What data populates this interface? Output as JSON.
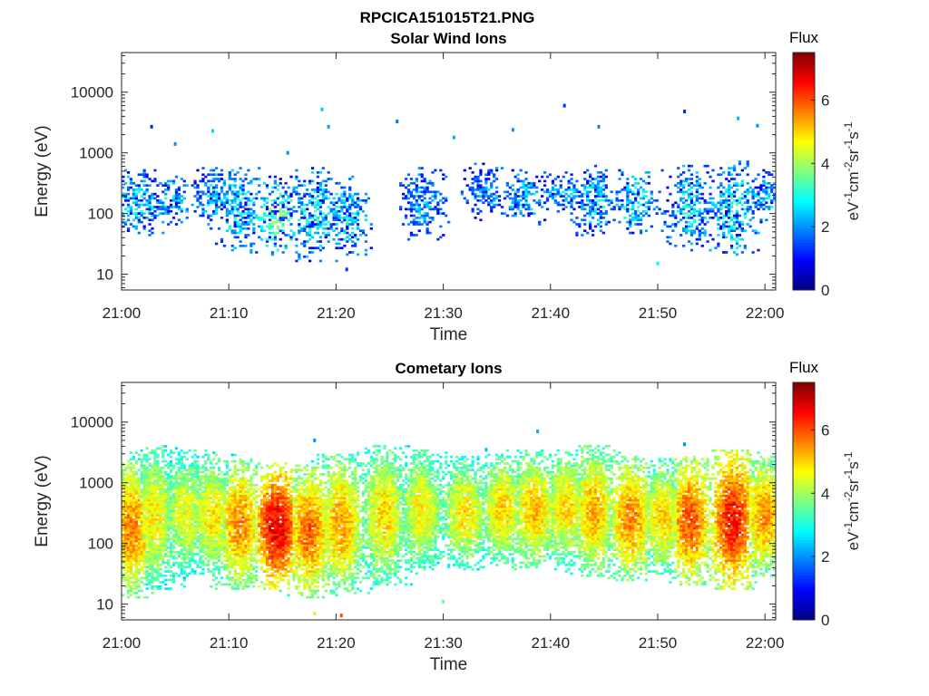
{
  "figure": {
    "title": "RPCICA151015T21.PNG"
  },
  "chart_data": [
    {
      "type": "heatmap",
      "title": "Solar Wind Ions",
      "xlabel": "Time",
      "ylabel": "Energy (eV)",
      "x_range": [
        "21:00",
        "22:01"
      ],
      "y_scale": "log",
      "y_range": [
        5.5,
        45000
      ],
      "x_ticks": [
        "21:00",
        "21:10",
        "21:20",
        "21:30",
        "21:40",
        "21:50",
        "22:00"
      ],
      "y_ticks": [
        "10",
        "100",
        "1000",
        "10000"
      ],
      "colorbar": {
        "label": "Flux",
        "unit": "eV-1cm-2sr-1s-1",
        "unit_display": [
          "eV",
          "-1",
          "cm",
          "-2",
          "sr",
          "-1",
          "s",
          "-1"
        ],
        "range": [
          0,
          7.5
        ],
        "ticks": [
          "0",
          "2",
          "4",
          "6"
        ],
        "colormap": "jet"
      },
      "bands": [
        {
          "t": 1.5,
          "lo": 60,
          "hi": 380,
          "peak": 2.8
        },
        {
          "t": 4.5,
          "lo": 90,
          "hi": 330,
          "peak": 2.6
        },
        {
          "t": 8.5,
          "lo": 80,
          "hi": 480,
          "peak": 2.5
        },
        {
          "t": 11.0,
          "lo": 35,
          "hi": 420,
          "peak": 2.9
        },
        {
          "t": 14.5,
          "lo": 28,
          "hi": 300,
          "peak": 3.6
        },
        {
          "t": 18.0,
          "lo": 22,
          "hi": 420,
          "peak": 3.0
        },
        {
          "t": 21.0,
          "lo": 30,
          "hi": 300,
          "peak": 2.8
        },
        {
          "t": 28.0,
          "lo": 50,
          "hi": 400,
          "peak": 2.5
        },
        {
          "t": 34.0,
          "lo": 110,
          "hi": 480,
          "peak": 2.3
        },
        {
          "t": 37.5,
          "lo": 90,
          "hi": 420,
          "peak": 2.6
        },
        {
          "t": 41.0,
          "lo": 120,
          "hi": 360,
          "peak": 2.5
        },
        {
          "t": 44.0,
          "lo": 60,
          "hi": 450,
          "peak": 2.7
        },
        {
          "t": 48.0,
          "lo": 60,
          "hi": 380,
          "peak": 2.9
        },
        {
          "t": 53.0,
          "lo": 35,
          "hi": 460,
          "peak": 2.8
        },
        {
          "t": 57.0,
          "lo": 30,
          "hi": 520,
          "peak": 3.2
        },
        {
          "t": 60.0,
          "lo": 90,
          "hi": 400,
          "peak": 2.6
        }
      ],
      "outliers": [
        [
          2.8,
          2700,
          1.2
        ],
        [
          5.0,
          1400,
          2.0
        ],
        [
          8.5,
          2300,
          2.5
        ],
        [
          15.5,
          1000,
          2.0
        ],
        [
          18.7,
          5200,
          2.4
        ],
        [
          19.3,
          2700,
          2.1
        ],
        [
          25.7,
          3300,
          1.8
        ],
        [
          31.0,
          1800,
          2.2
        ],
        [
          36.5,
          2400,
          2.0
        ],
        [
          41.3,
          6000,
          1.3
        ],
        [
          44.5,
          2700,
          1.9
        ],
        [
          52.5,
          4800,
          1.2
        ],
        [
          57.5,
          3700,
          2.3
        ],
        [
          59.3,
          2800,
          2.0
        ],
        [
          50.0,
          15,
          2.8
        ],
        [
          21.0,
          12,
          1.3
        ]
      ]
    },
    {
      "type": "heatmap",
      "title": "Cometary Ions",
      "xlabel": "Time",
      "ylabel": "Energy (eV)",
      "x_range": [
        "21:00",
        "22:01"
      ],
      "y_scale": "log",
      "y_range": [
        5.5,
        45000
      ],
      "x_ticks": [
        "21:00",
        "21:10",
        "21:20",
        "21:30",
        "21:40",
        "21:50",
        "22:00"
      ],
      "y_ticks": [
        "10",
        "100",
        "1000",
        "10000"
      ],
      "colorbar": {
        "label": "Flux",
        "unit": "eV-1cm-2sr-1s-1",
        "unit_display": [
          "eV",
          "-1",
          "cm",
          "-2",
          "sr",
          "-1",
          "s",
          "-1"
        ],
        "range": [
          0,
          7.5
        ],
        "ticks": [
          "0",
          "2",
          "4",
          "6"
        ],
        "colormap": "jet"
      },
      "bands": [
        {
          "t": 1.0,
          "lo": 18,
          "hi": 1800,
          "peak": 5.6
        },
        {
          "t": 3.0,
          "lo": 25,
          "hi": 3000,
          "peak": 4.8
        },
        {
          "t": 6.0,
          "lo": 40,
          "hi": 2500,
          "peak": 4.6
        },
        {
          "t": 8.5,
          "lo": 35,
          "hi": 2200,
          "peak": 4.9
        },
        {
          "t": 11.0,
          "lo": 25,
          "hi": 1800,
          "peak": 5.6
        },
        {
          "t": 14.5,
          "lo": 25,
          "hi": 1500,
          "peak": 6.8
        },
        {
          "t": 17.5,
          "lo": 18,
          "hi": 1400,
          "peak": 5.8
        },
        {
          "t": 20.5,
          "lo": 20,
          "hi": 2200,
          "peak": 5.4
        },
        {
          "t": 24.5,
          "lo": 30,
          "hi": 3000,
          "peak": 5.0
        },
        {
          "t": 28.0,
          "lo": 50,
          "hi": 2500,
          "peak": 4.8
        },
        {
          "t": 32.0,
          "lo": 50,
          "hi": 2000,
          "peak": 4.9
        },
        {
          "t": 35.5,
          "lo": 60,
          "hi": 2200,
          "peak": 5.0
        },
        {
          "t": 38.5,
          "lo": 50,
          "hi": 2500,
          "peak": 5.2
        },
        {
          "t": 41.5,
          "lo": 60,
          "hi": 2500,
          "peak": 5.0
        },
        {
          "t": 44.0,
          "lo": 40,
          "hi": 3000,
          "peak": 5.3
        },
        {
          "t": 47.5,
          "lo": 35,
          "hi": 2000,
          "peak": 5.6
        },
        {
          "t": 50.5,
          "lo": 40,
          "hi": 1800,
          "peak": 5.0
        },
        {
          "t": 53.0,
          "lo": 30,
          "hi": 2000,
          "peak": 6.0
        },
        {
          "t": 57.0,
          "lo": 25,
          "hi": 2500,
          "peak": 6.5
        },
        {
          "t": 60.0,
          "lo": 40,
          "hi": 2000,
          "peak": 5.5
        }
      ],
      "outliers": [
        [
          18.0,
          5000,
          2.0
        ],
        [
          34.0,
          3500,
          2.3
        ],
        [
          38.8,
          7000,
          2.2
        ],
        [
          52.5,
          4300,
          2.0
        ],
        [
          18.0,
          7,
          4.2
        ],
        [
          20.5,
          6.5,
          6.0
        ],
        [
          30.0,
          11,
          3.6
        ]
      ]
    }
  ]
}
